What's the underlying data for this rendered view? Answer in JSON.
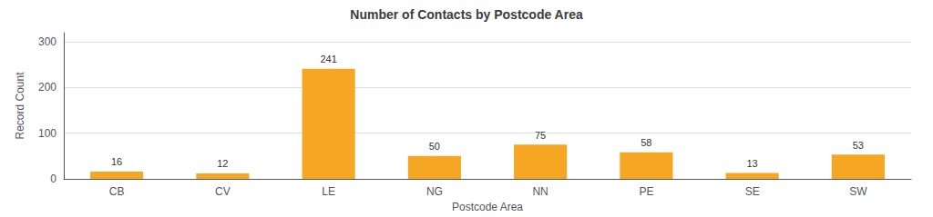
{
  "chart_data": {
    "type": "bar",
    "title": "Number of Contacts by Postcode Area",
    "xlabel": "Postcode Area",
    "ylabel": "Record Count",
    "categories": [
      "CB",
      "CV",
      "LE",
      "NG",
      "NN",
      "PE",
      "SE",
      "SW"
    ],
    "values": [
      16,
      12,
      241,
      50,
      75,
      58,
      13,
      53
    ],
    "color": "#F5A623",
    "ylim": [
      0,
      320
    ],
    "yticks": [
      0,
      100,
      200,
      300
    ],
    "grid": true,
    "data_labels": true
  }
}
